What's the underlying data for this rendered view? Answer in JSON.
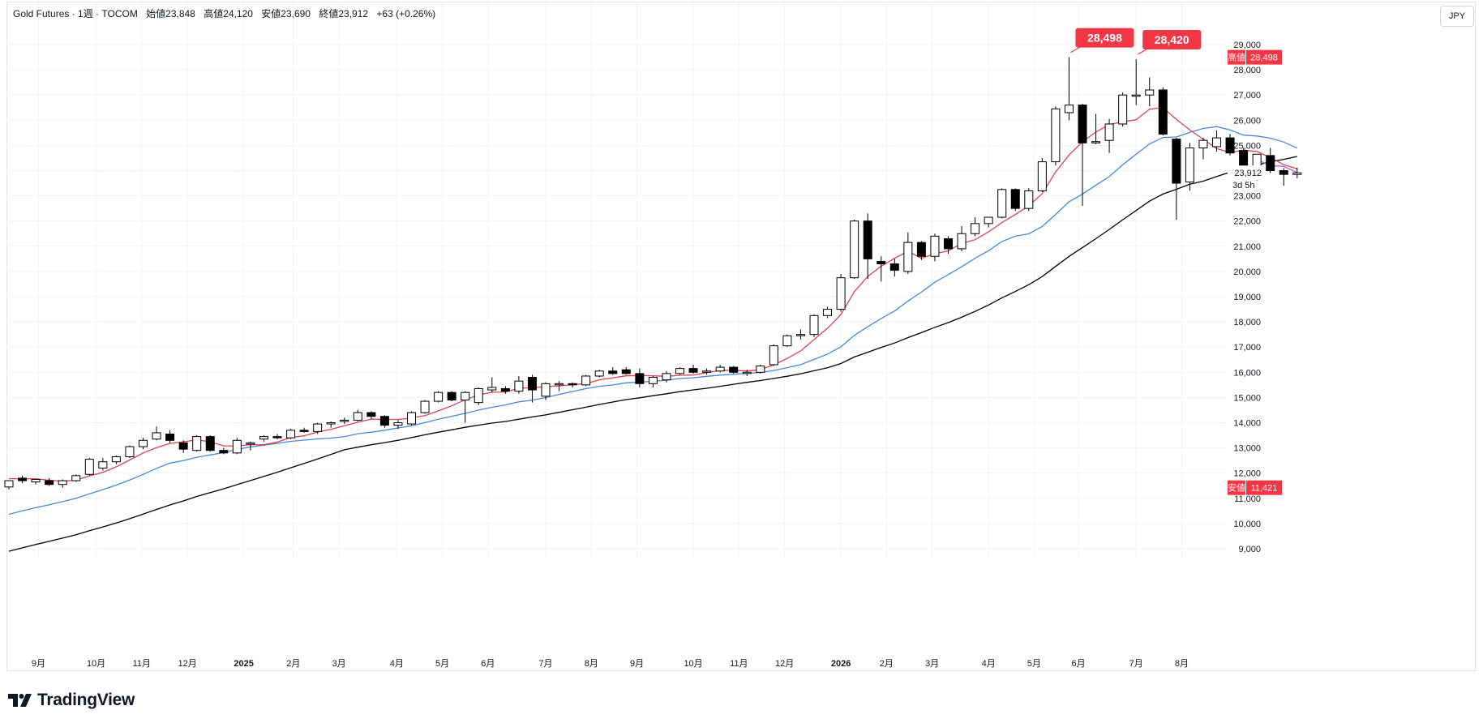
{
  "header": {
    "symbol": "Gold Futures · 1週 · TOCOM",
    "open": "始値23,848",
    "high": "高値24,120",
    "low": "安値23,690",
    "close": "終値23,912",
    "change": "+63 (+0.26%)"
  },
  "currency": "JPY",
  "brand": "TradingView",
  "colors": {
    "up_body": "#ffffff",
    "down_body": "#000000",
    "candle_outline": "#000000",
    "ma_short": "#e0414f",
    "ma_mid": "#4a86d9",
    "ma_long": "#000000",
    "ma_recent": "#a06bd6",
    "label_red": "#f23645",
    "grid": "#f0f3fa"
  },
  "chart_data": {
    "type": "candlestick",
    "interval": "1週",
    "ylim": [
      9000,
      29500
    ],
    "yticks": [
      "29,000",
      "28,000",
      "27,000",
      "26,000",
      "25,000",
      "24,000",
      "23,000",
      "22,000",
      "21,000",
      "20,000",
      "19,000",
      "18,000",
      "17,000",
      "16,000",
      "15,000",
      "14,000",
      "13,000",
      "12,000",
      "11,000",
      "10,000",
      "9,000"
    ],
    "xticks": [
      "9月",
      "10月",
      "11月",
      "12月",
      "2025",
      "2月",
      "3月",
      "4月",
      "5月",
      "6月",
      "7月",
      "8月",
      "9月",
      "10月",
      "11月",
      "12月",
      "2026",
      "2月",
      "3月",
      "4月",
      "5月",
      "6月",
      "7月",
      "8月"
    ],
    "candles": [
      {
        "o": 11450,
        "h": 11700,
        "l": 11350,
        "c": 11700
      },
      {
        "o": 11800,
        "h": 11900,
        "l": 11600,
        "c": 11700
      },
      {
        "o": 11650,
        "h": 11750,
        "l": 11550,
        "c": 11750
      },
      {
        "o": 11700,
        "h": 11800,
        "l": 11500,
        "c": 11550
      },
      {
        "o": 11550,
        "h": 11750,
        "l": 11421,
        "c": 11700
      },
      {
        "o": 11700,
        "h": 11950,
        "l": 11650,
        "c": 11900
      },
      {
        "o": 11950,
        "h": 12600,
        "l": 11900,
        "c": 12550
      },
      {
        "o": 12200,
        "h": 12600,
        "l": 12100,
        "c": 12450
      },
      {
        "o": 12450,
        "h": 12700,
        "l": 12350,
        "c": 12650
      },
      {
        "o": 12650,
        "h": 13100,
        "l": 12600,
        "c": 13050
      },
      {
        "o": 13050,
        "h": 13400,
        "l": 12950,
        "c": 13300
      },
      {
        "o": 13350,
        "h": 13850,
        "l": 13300,
        "c": 13600
      },
      {
        "o": 13550,
        "h": 13700,
        "l": 13200,
        "c": 13300
      },
      {
        "o": 13200,
        "h": 13300,
        "l": 12800,
        "c": 12950
      },
      {
        "o": 12900,
        "h": 13500,
        "l": 12850,
        "c": 13450
      },
      {
        "o": 13450,
        "h": 13500,
        "l": 12850,
        "c": 12900
      },
      {
        "o": 12900,
        "h": 13000,
        "l": 12750,
        "c": 12800
      },
      {
        "o": 12800,
        "h": 13400,
        "l": 12750,
        "c": 13300
      },
      {
        "o": 13150,
        "h": 13250,
        "l": 12900,
        "c": 13200
      },
      {
        "o": 13350,
        "h": 13500,
        "l": 13250,
        "c": 13450
      },
      {
        "o": 13450,
        "h": 13550,
        "l": 13350,
        "c": 13400
      },
      {
        "o": 13400,
        "h": 13750,
        "l": 13350,
        "c": 13700
      },
      {
        "o": 13700,
        "h": 13800,
        "l": 13600,
        "c": 13650
      },
      {
        "o": 13650,
        "h": 14000,
        "l": 13550,
        "c": 13950
      },
      {
        "o": 13950,
        "h": 14050,
        "l": 13800,
        "c": 14000
      },
      {
        "o": 14050,
        "h": 14200,
        "l": 13950,
        "c": 14100
      },
      {
        "o": 14100,
        "h": 14500,
        "l": 14050,
        "c": 14400
      },
      {
        "o": 14400,
        "h": 14450,
        "l": 14150,
        "c": 14250
      },
      {
        "o": 14250,
        "h": 14300,
        "l": 13800,
        "c": 13900
      },
      {
        "o": 13900,
        "h": 14100,
        "l": 13750,
        "c": 14000
      },
      {
        "o": 13950,
        "h": 14450,
        "l": 13900,
        "c": 14400
      },
      {
        "o": 14400,
        "h": 14900,
        "l": 14350,
        "c": 14850
      },
      {
        "o": 14850,
        "h": 15250,
        "l": 14800,
        "c": 15200
      },
      {
        "o": 15200,
        "h": 15250,
        "l": 14850,
        "c": 14900
      },
      {
        "o": 14900,
        "h": 15250,
        "l": 14000,
        "c": 15200
      },
      {
        "o": 14800,
        "h": 15400,
        "l": 14700,
        "c": 15350
      },
      {
        "o": 15300,
        "h": 15800,
        "l": 15200,
        "c": 15400
      },
      {
        "o": 15350,
        "h": 15450,
        "l": 15150,
        "c": 15250
      },
      {
        "o": 15250,
        "h": 15850,
        "l": 15150,
        "c": 15650
      },
      {
        "o": 15800,
        "h": 15900,
        "l": 14800,
        "c": 15300
      },
      {
        "o": 15050,
        "h": 15600,
        "l": 14900,
        "c": 15550
      },
      {
        "o": 15550,
        "h": 15650,
        "l": 15250,
        "c": 15550
      },
      {
        "o": 15550,
        "h": 15600,
        "l": 15400,
        "c": 15500
      },
      {
        "o": 15500,
        "h": 15900,
        "l": 15450,
        "c": 15850
      },
      {
        "o": 15850,
        "h": 16100,
        "l": 15800,
        "c": 16050
      },
      {
        "o": 16050,
        "h": 16200,
        "l": 15900,
        "c": 15950
      },
      {
        "o": 16100,
        "h": 16200,
        "l": 15900,
        "c": 15950
      },
      {
        "o": 15950,
        "h": 16150,
        "l": 15400,
        "c": 15550
      },
      {
        "o": 15550,
        "h": 15850,
        "l": 15400,
        "c": 15800
      },
      {
        "o": 15700,
        "h": 16050,
        "l": 15600,
        "c": 15950
      },
      {
        "o": 15950,
        "h": 16200,
        "l": 15900,
        "c": 16150
      },
      {
        "o": 16150,
        "h": 16300,
        "l": 15950,
        "c": 16000
      },
      {
        "o": 16000,
        "h": 16150,
        "l": 15900,
        "c": 16050
      },
      {
        "o": 16050,
        "h": 16300,
        "l": 16000,
        "c": 16200
      },
      {
        "o": 16200,
        "h": 16250,
        "l": 15950,
        "c": 16000
      },
      {
        "o": 15950,
        "h": 16100,
        "l": 15850,
        "c": 16000
      },
      {
        "o": 16000,
        "h": 16300,
        "l": 15950,
        "c": 16250
      },
      {
        "o": 16300,
        "h": 17100,
        "l": 16250,
        "c": 17050
      },
      {
        "o": 17050,
        "h": 17500,
        "l": 17000,
        "c": 17450
      },
      {
        "o": 17450,
        "h": 17700,
        "l": 17300,
        "c": 17500
      },
      {
        "o": 17500,
        "h": 18300,
        "l": 17400,
        "c": 18250
      },
      {
        "o": 18250,
        "h": 18600,
        "l": 18150,
        "c": 18500
      },
      {
        "o": 18500,
        "h": 19900,
        "l": 18400,
        "c": 19750
      },
      {
        "o": 19750,
        "h": 22050,
        "l": 19700,
        "c": 22000
      },
      {
        "o": 22000,
        "h": 22300,
        "l": 19700,
        "c": 20500
      },
      {
        "o": 20400,
        "h": 20600,
        "l": 19600,
        "c": 20300
      },
      {
        "o": 20300,
        "h": 20500,
        "l": 19800,
        "c": 20050
      },
      {
        "o": 20000,
        "h": 21550,
        "l": 19900,
        "c": 21150
      },
      {
        "o": 21150,
        "h": 21200,
        "l": 20450,
        "c": 20600
      },
      {
        "o": 20600,
        "h": 21500,
        "l": 20400,
        "c": 21400
      },
      {
        "o": 21300,
        "h": 21400,
        "l": 20700,
        "c": 20900
      },
      {
        "o": 20900,
        "h": 21800,
        "l": 20800,
        "c": 21500
      },
      {
        "o": 21500,
        "h": 22150,
        "l": 21400,
        "c": 21900
      },
      {
        "o": 21900,
        "h": 22150,
        "l": 21750,
        "c": 22150
      },
      {
        "o": 22150,
        "h": 23300,
        "l": 22100,
        "c": 23250
      },
      {
        "o": 23250,
        "h": 23300,
        "l": 22400,
        "c": 22500
      },
      {
        "o": 22500,
        "h": 23300,
        "l": 22400,
        "c": 23200
      },
      {
        "o": 23200,
        "h": 24500,
        "l": 23150,
        "c": 24350
      },
      {
        "o": 24350,
        "h": 26550,
        "l": 24200,
        "c": 26450
      },
      {
        "o": 26300,
        "h": 28498,
        "l": 26000,
        "c": 26600
      },
      {
        "o": 26600,
        "h": 26650,
        "l": 22600,
        "c": 25100
      },
      {
        "o": 25100,
        "h": 26250,
        "l": 25050,
        "c": 25150
      },
      {
        "o": 25200,
        "h": 26050,
        "l": 24700,
        "c": 25850
      },
      {
        "o": 25850,
        "h": 27100,
        "l": 25750,
        "c": 27000
      },
      {
        "o": 26950,
        "h": 28420,
        "l": 26600,
        "c": 27000
      },
      {
        "o": 27000,
        "h": 27700,
        "l": 26550,
        "c": 27200
      },
      {
        "o": 27200,
        "h": 27300,
        "l": 25400,
        "c": 25450
      },
      {
        "o": 25250,
        "h": 25300,
        "l": 22050,
        "c": 23500
      },
      {
        "o": 23550,
        "h": 25100,
        "l": 23200,
        "c": 24900
      },
      {
        "o": 24900,
        "h": 25300,
        "l": 24450,
        "c": 25200
      },
      {
        "o": 24950,
        "h": 25600,
        "l": 24750,
        "c": 25300
      },
      {
        "o": 25300,
        "h": 25450,
        "l": 24600,
        "c": 24700
      },
      {
        "o": 24800,
        "h": 24900,
        "l": 23950,
        "c": 23950
      },
      {
        "o": 23750,
        "h": 24650,
        "l": 23600,
        "c": 24650
      },
      {
        "o": 24600,
        "h": 24900,
        "l": 23900,
        "c": 24000
      },
      {
        "o": 24000,
        "h": 24100,
        "l": 23400,
        "c": 23850
      },
      {
        "o": 23848,
        "h": 24120,
        "l": 23690,
        "c": 23912
      }
    ],
    "peak_labels": [
      {
        "index": 79,
        "value": 28498,
        "text": "28,498"
      },
      {
        "index": 84,
        "value": 28420,
        "text": "28,420"
      }
    ],
    "axis_labels": [
      {
        "name": "高値",
        "value": 28498,
        "text": "28,498"
      },
      {
        "name": "安値",
        "value": 11421,
        "text": "11,421"
      },
      {
        "name": "last",
        "value": 23912,
        "text": "23,912",
        "sub": "3d 5h"
      }
    ]
  }
}
